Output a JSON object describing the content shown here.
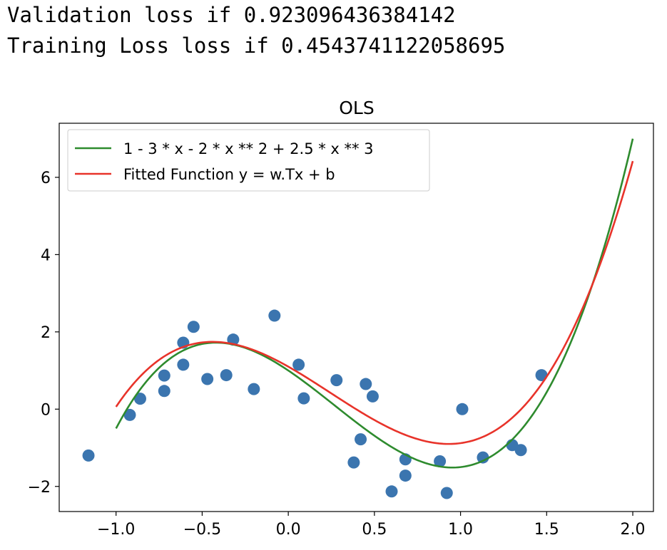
{
  "output": {
    "line1": "Validation loss if 0.923096436384142",
    "line2": "Training Loss loss if 0.4543741122058695"
  },
  "chart_data": {
    "type": "scatter+line",
    "title": "OLS",
    "xlabel": "",
    "ylabel": "",
    "xlim": [
      -1.33,
      2.12
    ],
    "ylim": [
      -2.65,
      7.4
    ],
    "xticks": [
      -1.0,
      -0.5,
      0.0,
      0.5,
      1.0,
      1.5,
      2.0
    ],
    "xtick_labels": [
      "−1.0",
      "−0.5",
      "0.0",
      "0.5",
      "1.0",
      "1.5",
      "2.0"
    ],
    "yticks": [
      -2,
      0,
      2,
      4,
      6
    ],
    "ytick_labels": [
      "−2",
      "0",
      "2",
      "4",
      "6"
    ],
    "grid": false,
    "legend_position": "upper-left",
    "legend": [
      {
        "label": "1 - 3 * x - 2 * x ** 2 + 2.5 * x ** 3",
        "color": "#2e8b2e"
      },
      {
        "label": "Fitted Function y = w.Tx + b",
        "color": "#e8332a"
      }
    ],
    "series": [
      {
        "name": "1 - 3 * x - 2 * x ** 2 + 2.5 * x ** 3",
        "kind": "line",
        "color": "#2e8b2e",
        "x_range": [
          -1.0,
          2.0
        ],
        "coefficients": [
          1,
          -3,
          -2,
          2.5
        ]
      },
      {
        "name": "Fitted Function y = w.Tx + b",
        "kind": "line",
        "color": "#e8332a",
        "x_range": [
          -1.0,
          2.0
        ],
        "coefficients": [
          1.1,
          -2.52,
          -1.51,
          2.05
        ]
      },
      {
        "name": "",
        "kind": "scatter",
        "color": "#3b75af",
        "points": [
          [
            -1.16,
            -1.2
          ],
          [
            -0.92,
            -0.15
          ],
          [
            -0.86,
            0.27
          ],
          [
            -0.72,
            0.87
          ],
          [
            -0.72,
            0.47
          ],
          [
            -0.61,
            1.72
          ],
          [
            -0.61,
            1.15
          ],
          [
            -0.55,
            2.13
          ],
          [
            -0.47,
            0.78
          ],
          [
            -0.36,
            0.88
          ],
          [
            -0.32,
            1.8
          ],
          [
            -0.2,
            0.52
          ],
          [
            -0.08,
            2.42
          ],
          [
            0.06,
            1.15
          ],
          [
            0.09,
            0.28
          ],
          [
            0.28,
            0.75
          ],
          [
            0.38,
            -1.38
          ],
          [
            0.42,
            -0.78
          ],
          [
            0.45,
            0.65
          ],
          [
            0.49,
            0.33
          ],
          [
            0.6,
            -2.13
          ],
          [
            0.68,
            -1.3
          ],
          [
            0.68,
            -1.72
          ],
          [
            0.88,
            -1.35
          ],
          [
            0.92,
            -2.17
          ],
          [
            1.01,
            0.0
          ],
          [
            1.13,
            -1.25
          ],
          [
            1.3,
            -0.93
          ],
          [
            1.35,
            -1.06
          ],
          [
            1.47,
            0.88
          ]
        ]
      }
    ]
  }
}
